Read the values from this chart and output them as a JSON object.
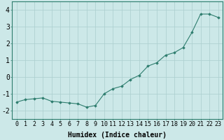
{
  "x": [
    0,
    1,
    2,
    3,
    4,
    5,
    6,
    7,
    8,
    9,
    10,
    11,
    12,
    13,
    14,
    15,
    16,
    17,
    18,
    19,
    20,
    21,
    22,
    23
  ],
  "y": [
    -1.5,
    -1.35,
    -1.3,
    -1.25,
    -1.45,
    -1.5,
    -1.55,
    -1.6,
    -1.8,
    -1.7,
    -1.0,
    -0.7,
    -0.55,
    -0.15,
    0.1,
    0.65,
    0.85,
    1.3,
    1.45,
    1.75,
    2.65,
    3.75,
    3.75,
    3.55
  ],
  "xlabel": "Humidex (Indice chaleur)",
  "ylim": [
    -2.5,
    4.5
  ],
  "xlim": [
    -0.5,
    23.5
  ],
  "yticks": [
    -2,
    -1,
    0,
    1,
    2,
    3,
    4
  ],
  "xticks": [
    0,
    1,
    2,
    3,
    4,
    5,
    6,
    7,
    8,
    9,
    10,
    11,
    12,
    13,
    14,
    15,
    16,
    17,
    18,
    19,
    20,
    21,
    22,
    23
  ],
  "line_color": "#2e7d6e",
  "marker_color": "#2e7d6e",
  "bg_color": "#cce8e8",
  "grid_color": "#aacece",
  "xlabel_fontsize": 7,
  "tick_fontsize": 6,
  "ytick_fontsize": 7
}
